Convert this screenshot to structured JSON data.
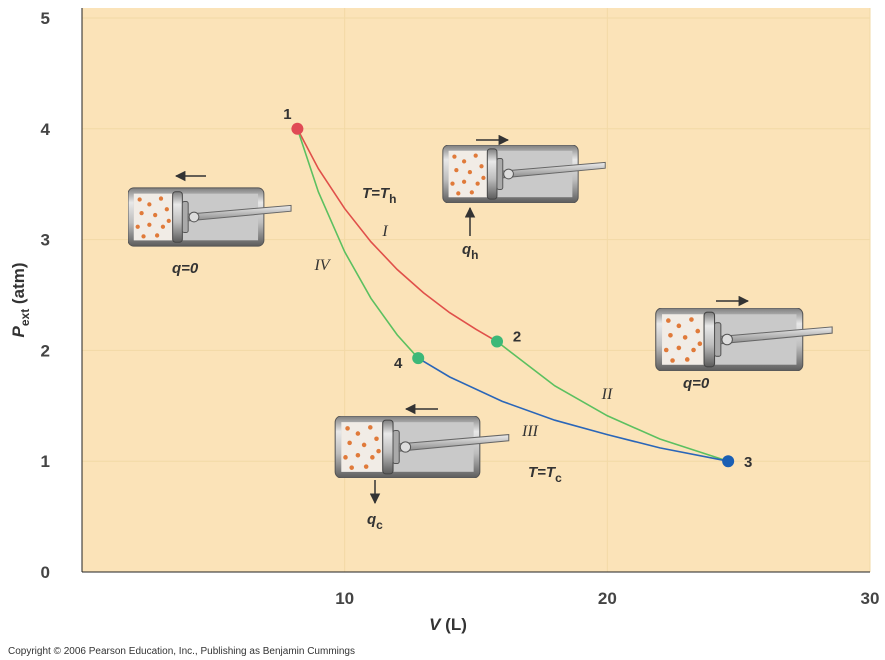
{
  "chart_data": {
    "type": "line",
    "x_label": {
      "text": "V",
      "after": " (L)"
    },
    "y_label": {
      "text": "P",
      "sub": "ext",
      "after": " (atm)"
    },
    "xlim": [
      0,
      30
    ],
    "ylim": [
      0,
      5
    ],
    "xticks": [
      10,
      20,
      30
    ],
    "yticks": [
      0,
      1,
      2,
      3,
      4,
      5
    ],
    "grid": true,
    "series": [
      {
        "name": "I",
        "color": "#e0504a",
        "x": [
          8.2,
          9,
          10,
          11,
          12,
          13,
          14,
          15,
          15.8
        ],
        "values": [
          4.0,
          3.64,
          3.28,
          2.98,
          2.73,
          2.52,
          2.34,
          2.19,
          2.08
        ]
      },
      {
        "name": "II",
        "color": "#5cc060",
        "x": [
          15.8,
          18,
          20,
          22,
          24.6
        ],
        "values": [
          2.08,
          1.68,
          1.41,
          1.2,
          1.0
        ]
      },
      {
        "name": "III",
        "color": "#2a66b8",
        "x": [
          12.8,
          14,
          16,
          18,
          20,
          22,
          24.6
        ],
        "values": [
          1.93,
          1.76,
          1.54,
          1.37,
          1.24,
          1.12,
          1.0
        ]
      },
      {
        "name": "IV",
        "color": "#5cc060",
        "x": [
          8.2,
          9,
          10,
          11,
          12,
          12.8
        ],
        "values": [
          4.0,
          3.43,
          2.89,
          2.47,
          2.14,
          1.93
        ]
      }
    ],
    "points": [
      {
        "label": "1",
        "x": 8.2,
        "y": 4.0,
        "color": "#e04a55"
      },
      {
        "label": "2",
        "x": 15.8,
        "y": 2.08,
        "color": "#3cb878"
      },
      {
        "label": "3",
        "x": 24.6,
        "y": 1.0,
        "color": "#1a5fb4"
      },
      {
        "label": "4",
        "x": 12.8,
        "y": 1.93,
        "color": "#3cb878"
      }
    ],
    "annotations": [
      {
        "text": "T=T",
        "sub": "h"
      },
      {
        "text": "q",
        "sub": "h"
      },
      {
        "text": "q=0"
      },
      {
        "text": "q=0"
      },
      {
        "text": "T=T",
        "sub": "c"
      },
      {
        "text": "q",
        "sub": "c"
      }
    ],
    "copyright": "Copyright © 2006 Pearson Education, Inc., Publishing as Benjamin Cummings"
  }
}
